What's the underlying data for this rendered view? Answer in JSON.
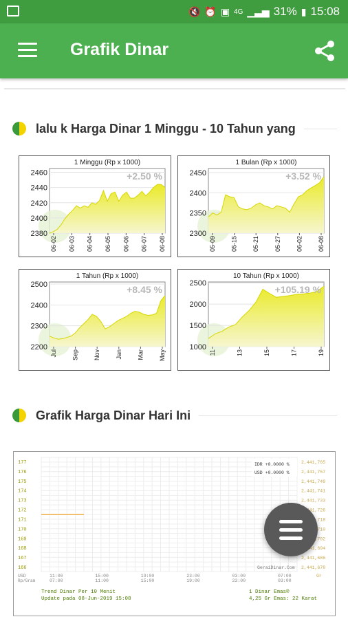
{
  "status_bar": {
    "time": "15:08",
    "battery": "31%",
    "network": "4G",
    "icons": [
      "image-icon",
      "mute-icon",
      "alarm-icon",
      "sim-icon",
      "signal-icon",
      "battery-icon"
    ]
  },
  "appbar": {
    "title": "Grafik Dinar",
    "menu_icon": "hamburger-menu-icon",
    "share_icon": "share-icon"
  },
  "section1": {
    "title": "lalu  k Harga Dinar 1 Minggu - 10 Tahun yang"
  },
  "section2": {
    "title": "Grafik Harga Dinar Hari Ini"
  },
  "colors": {
    "green_dark": "#3f9c3f",
    "green": "#4caf50",
    "chart_fill": "#eaea2a",
    "chart_grad": "#f4f4a0"
  },
  "chart_data": [
    {
      "type": "area",
      "title": "1 Minggu (Rp x 1000)",
      "change": "+2.50 %",
      "y_ticks": [
        "2460",
        "2440",
        "2420",
        "2400",
        "2380"
      ],
      "ylim": [
        2380,
        2465
      ],
      "x_ticks": [
        "06-02",
        "06-03",
        "06-04",
        "06-05",
        "06-06",
        "06-07",
        "06-08"
      ],
      "values": [
        2380,
        2382,
        2385,
        2391,
        2399,
        2405,
        2410,
        2416,
        2413,
        2416,
        2414,
        2420,
        2418,
        2423,
        2436,
        2422,
        2432,
        2434,
        2422,
        2430,
        2434,
        2426,
        2426,
        2430,
        2435,
        2429,
        2434,
        2440,
        2444,
        2444,
        2440
      ]
    },
    {
      "type": "area",
      "title": "1 Bulan (Rp x 1000)",
      "change": "+3.52 %",
      "y_ticks": [
        "2450",
        "2400",
        "2350",
        "2300"
      ],
      "ylim": [
        2300,
        2460
      ],
      "x_ticks": [
        "05-09",
        "05-15",
        "05-21",
        "05-27",
        "06-02",
        "06-08"
      ],
      "values": [
        2340,
        2350,
        2345,
        2352,
        2395,
        2390,
        2388,
        2365,
        2360,
        2358,
        2362,
        2370,
        2375,
        2368,
        2365,
        2360,
        2368,
        2365,
        2362,
        2352,
        2372,
        2390,
        2395,
        2405,
        2412,
        2418,
        2425,
        2440
      ]
    },
    {
      "type": "area",
      "title": "1 Tahun (Rp x 1000)",
      "change": "+8.45 %",
      "y_ticks": [
        "2500",
        "2400",
        "2300",
        "2200"
      ],
      "ylim": [
        2200,
        2510
      ],
      "x_ticks": [
        "Jul",
        "Sep",
        "Nov",
        "Jan",
        "Mar",
        "May"
      ],
      "values": [
        2250,
        2242,
        2236,
        2238,
        2244,
        2250,
        2265,
        2290,
        2310,
        2330,
        2355,
        2345,
        2320,
        2285,
        2295,
        2310,
        2325,
        2335,
        2345,
        2360,
        2370,
        2365,
        2355,
        2350,
        2352,
        2360,
        2420,
        2445
      ]
    },
    {
      "type": "area",
      "title": "10 Tahun (Rp x 1000)",
      "change": "+105.19 %",
      "y_ticks": [
        "2500",
        "2000",
        "1500",
        "1000"
      ],
      "ylim": [
        1000,
        2520
      ],
      "x_ticks": [
        "11",
        "13",
        "15",
        "17",
        "19"
      ],
      "values": [
        1190,
        1300,
        1360,
        1460,
        1520,
        1700,
        1850,
        2050,
        2350,
        2250,
        2160,
        2180,
        2200,
        2230,
        2240,
        2260,
        2300,
        2420
      ]
    },
    {
      "type": "line",
      "title": "Trend Dinar Per 10 Menit",
      "subtitle": "Update pada 08-Jun-2019 15:08",
      "y_ticks": [
        "177",
        "176",
        "175",
        "174",
        "173",
        "172",
        "171",
        "170",
        "169",
        "168",
        "167",
        "166"
      ],
      "right_ticks": [
        "2,441,765",
        "2,441,757",
        "2,441,749",
        "2,441,741",
        "2,441,733",
        "2,441,726",
        "2,441,718",
        "2,441,710",
        "2,441,702",
        "2,441,694",
        "2,441,686",
        "2,441,678"
      ],
      "x_ticks": [
        "11:00",
        "15:00",
        "19:00",
        "23:00",
        "03:00",
        "07:00"
      ],
      "x_ticks_bottom": [
        "07:00",
        "11:00",
        "15:00",
        "19:00",
        "23:00",
        "03:00"
      ],
      "usd_label": "USD",
      "gold_label": "Gr",
      "sub_left": "Rp/Gram",
      "legend": [
        "IDR +0.0000 %",
        "USD +0.0000 %"
      ],
      "watermark": "GeraiDinar.Com",
      "footer_right": [
        "1 Dinar Emas®",
        "4,25 Gr Emas: 22 Karat"
      ],
      "line": [
        171.5,
        171.5
      ]
    }
  ]
}
